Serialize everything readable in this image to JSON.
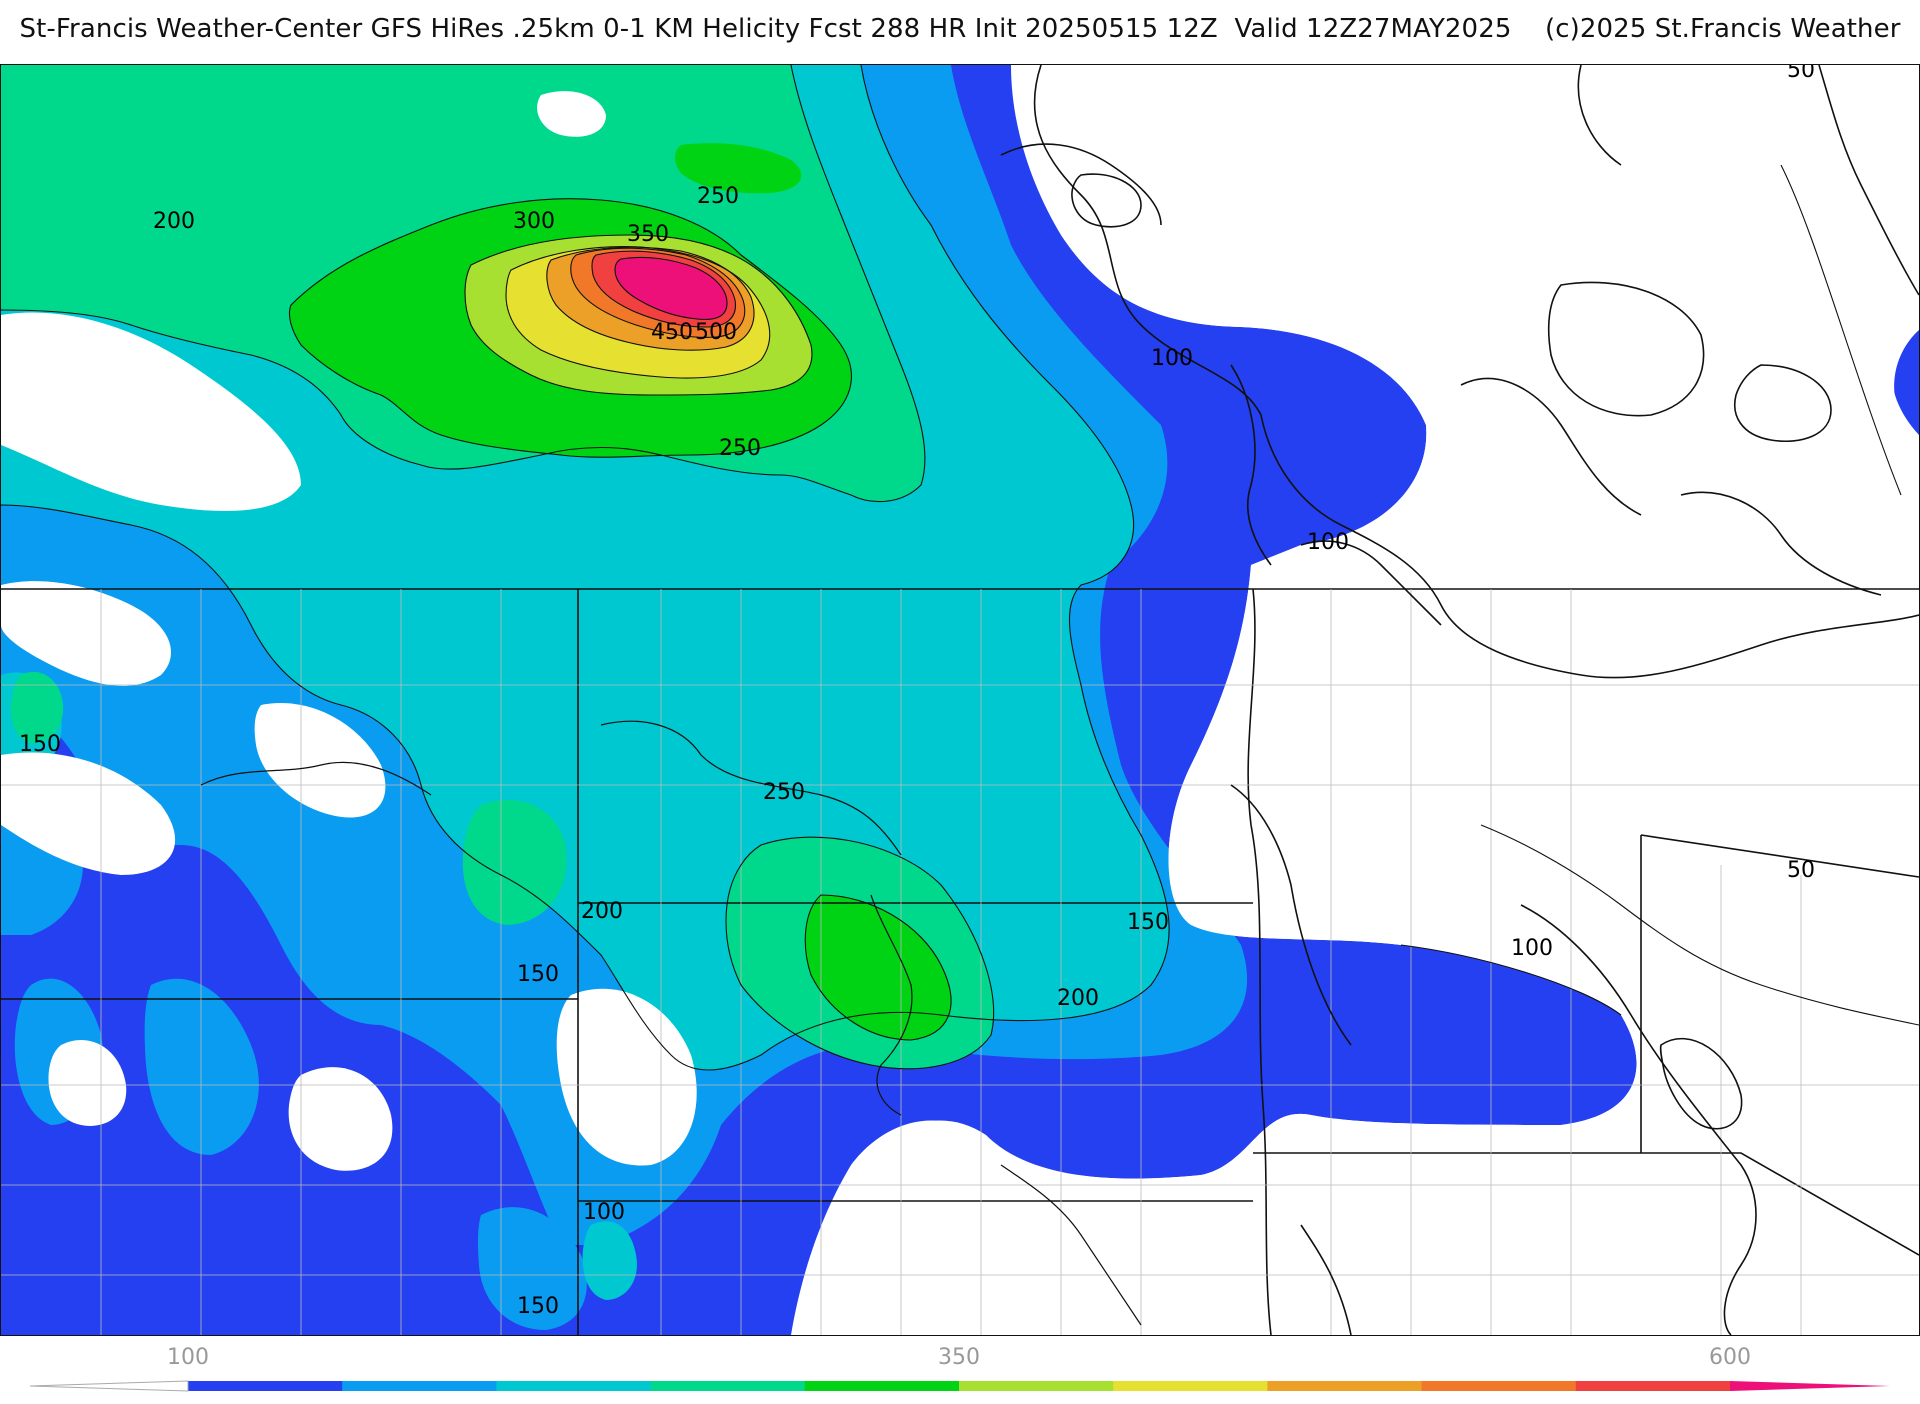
{
  "title": "St-Francis Weather-Center GFS HiRes .25km 0-1 KM Helicity Fcst 288 HR Init 20250515 12Z  Valid 12Z27MAY2025    (c)2025 St.Francis Weather",
  "legend": {
    "tick_labels": [
      "100",
      "350",
      "600"
    ],
    "tick_values": [
      100,
      350,
      600
    ],
    "min": 100,
    "max": 600,
    "step": 50,
    "colors": [
      "#2540f0",
      "#0a9cf0",
      "#00c8d0",
      "#00d88c",
      "#00d214",
      "#a8e032",
      "#e6e030",
      "#eca028",
      "#f07828",
      "#f04040",
      "#ec1078"
    ]
  },
  "contour_labels": [
    {
      "text": "200",
      "value": 200
    },
    {
      "text": "300",
      "value": 300
    },
    {
      "text": "350",
      "value": 350
    },
    {
      "text": "250",
      "value": 250
    },
    {
      "text": "450",
      "value": 450
    },
    {
      "text": "500",
      "value": 500
    },
    {
      "text": "250",
      "value": 250
    },
    {
      "text": "100",
      "value": 100
    },
    {
      "text": "100",
      "value": 100
    },
    {
      "text": "50",
      "value": 50
    },
    {
      "text": "150",
      "value": 150
    },
    {
      "text": "250",
      "value": 250
    },
    {
      "text": "200",
      "value": 200
    },
    {
      "text": "150",
      "value": 150
    },
    {
      "text": "150",
      "value": 150
    },
    {
      "text": "200",
      "value": 200
    },
    {
      "text": "100",
      "value": 100
    },
    {
      "text": "50",
      "value": 50
    },
    {
      "text": "100",
      "value": 100
    },
    {
      "text": "150",
      "value": 150
    }
  ]
}
